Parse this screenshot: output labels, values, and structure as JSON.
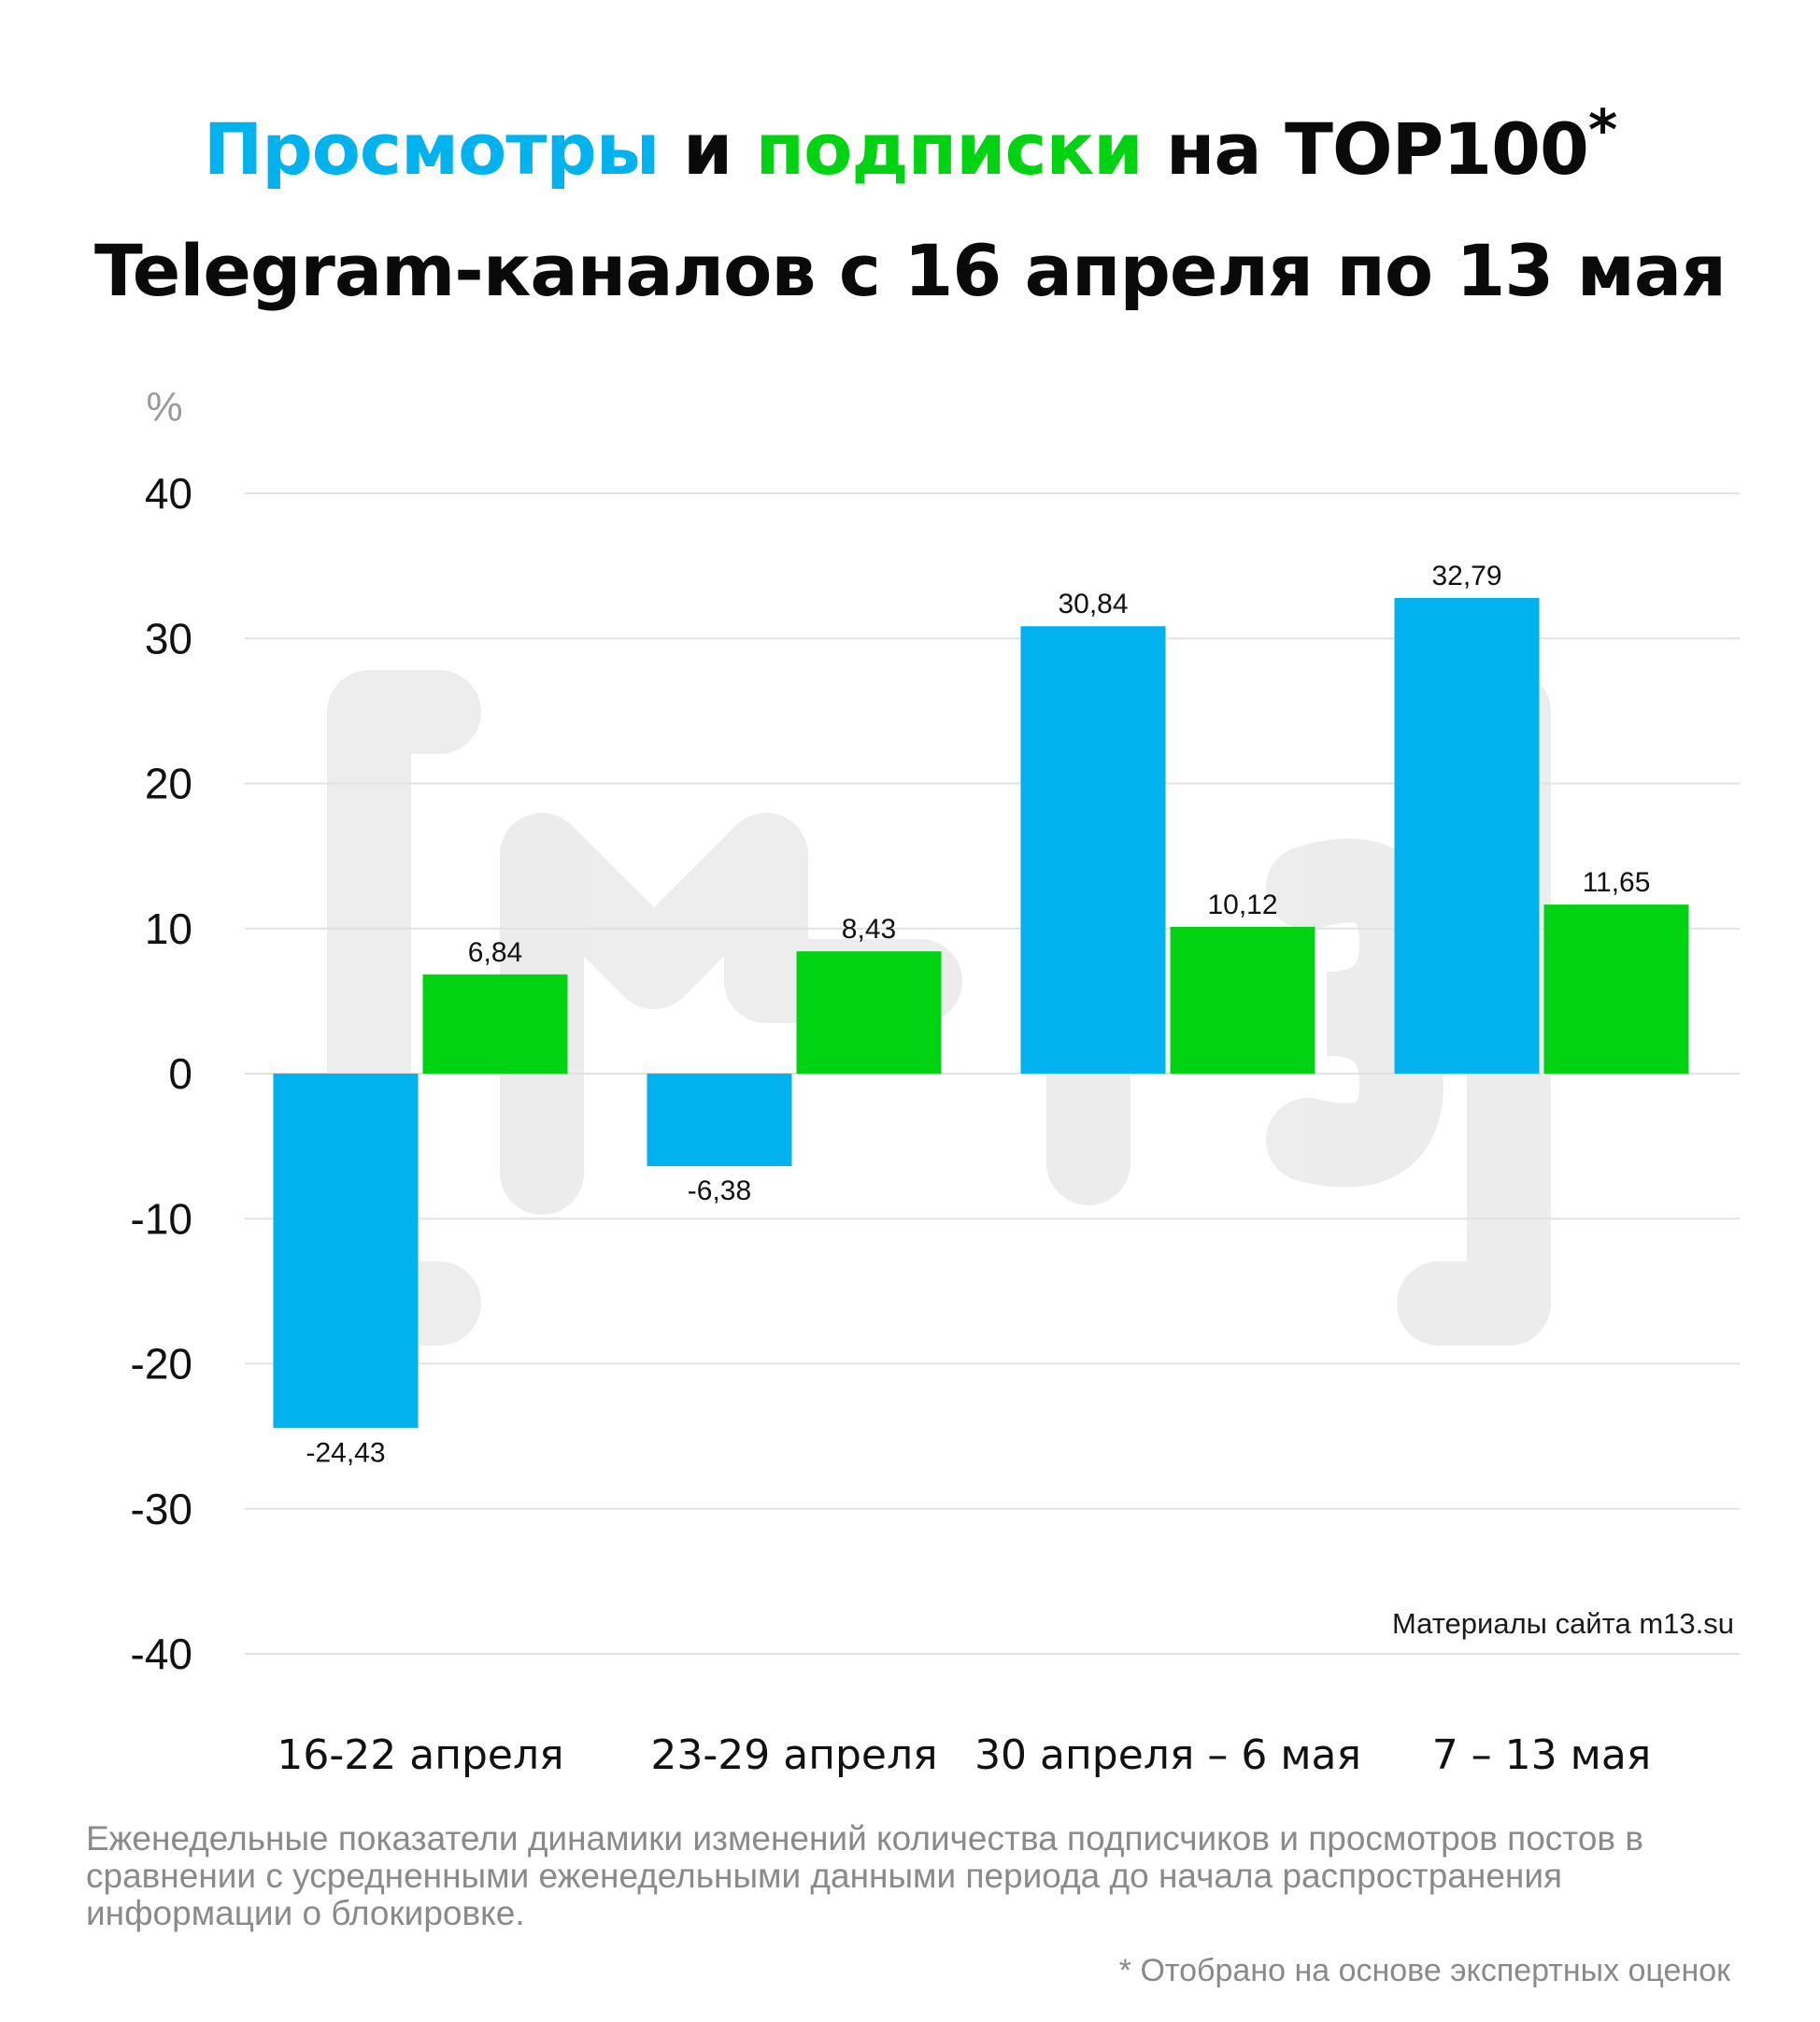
{
  "title": {
    "views": "Просмотры",
    "and": " и ",
    "subs": "подписки",
    "rest1": " на TOP100",
    "asterisk": "*",
    "line2": "Telegram-каналов с 16 апреля по 13 мая"
  },
  "source_note": "Материалы сайта m13.su",
  "footnote": "Еженедельные показатели динамики изменений количества подписчиков и просмотров постов в сравнении с усредненными еженедельными данными периода до начала распространения информации о блокировке.",
  "footnote_star": "* Отобрано на основе экспертных оценок",
  "colors": {
    "views": "#00b2ee",
    "subs": "#00d312",
    "grid": "#e2e2e2",
    "watermark": "#000000"
  },
  "chart_data": {
    "type": "bar",
    "ylabel": "%",
    "ylim": [
      -40,
      40
    ],
    "yticks": [
      40,
      30,
      20,
      10,
      0,
      -10,
      -20,
      -30,
      -40
    ],
    "categories": [
      "16-22 апреля",
      "23-29 апреля",
      "30 апреля – 6 мая",
      "7 – 13 мая"
    ],
    "series": [
      {
        "values": [
          -24.43,
          -6.38,
          30.84,
          32.79
        ],
        "labels": [
          "-24,43",
          "-6,38",
          "30,84",
          "32,79"
        ],
        "color": "#00b2ee"
      },
      {
        "values": [
          6.84,
          8.43,
          10.12,
          11.65
        ],
        "labels": [
          "6,84",
          "8,43",
          "10,12",
          "11,65"
        ],
        "color": "#00d312"
      }
    ],
    "grid": true,
    "legend": "none"
  }
}
